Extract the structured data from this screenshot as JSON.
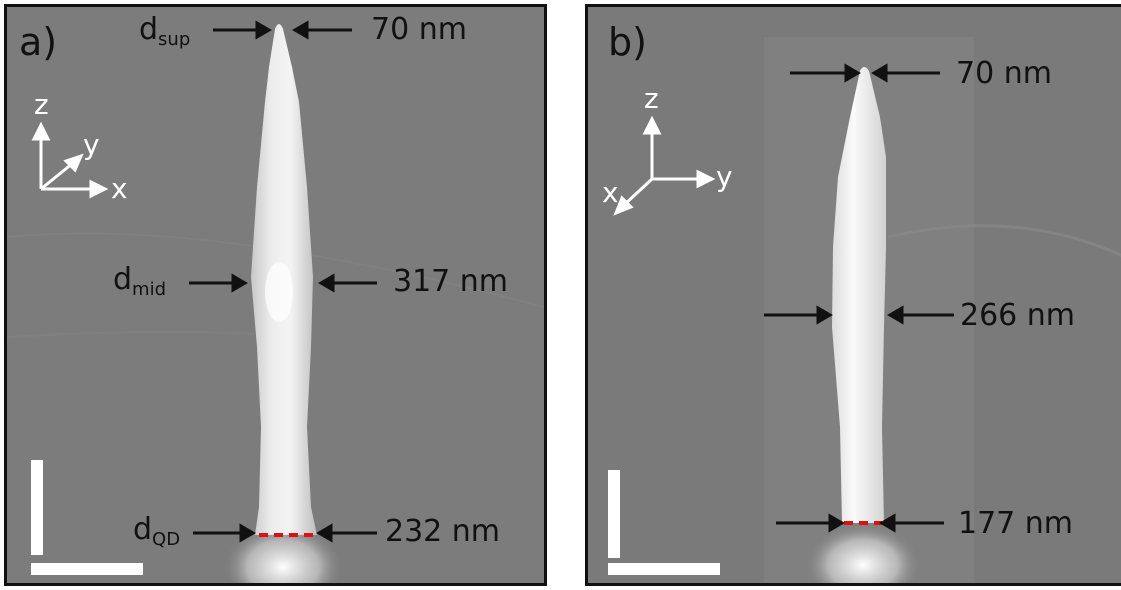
{
  "panel_a": {
    "label": "a)",
    "axes": {
      "z": "z",
      "y": "y",
      "x": "x"
    },
    "labels": {
      "top_d": "d",
      "top_sub": "sup",
      "top_value": "70 nm",
      "mid_d": "d",
      "mid_sub": "mid",
      "mid_value": "317 nm",
      "bottom_d": "d",
      "bottom_sub": "QD",
      "bottom_value": "232 nm"
    }
  },
  "panel_b": {
    "label": "b)",
    "axes": {
      "z": "z",
      "y": "y",
      "x": "x"
    },
    "labels": {
      "top_value": "70 nm",
      "mid_value": "266 nm",
      "bottom_value": "177 nm"
    }
  },
  "colors": {
    "background_gray": "#7f7f7f",
    "nanowire": "#f2f2f2",
    "arrow": "#111111",
    "qd_marker": "#e01010",
    "scale_bar": "#ffffff"
  }
}
